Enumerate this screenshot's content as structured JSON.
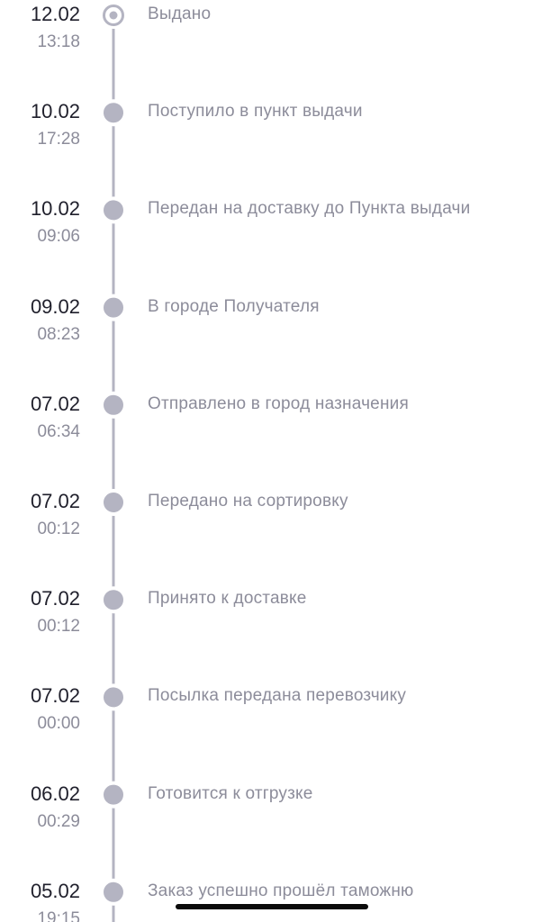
{
  "events": [
    {
      "date": "12.02",
      "time": "13:18",
      "status": "Выдано"
    },
    {
      "date": "10.02",
      "time": "17:28",
      "status": "Поступило в пункт выдачи"
    },
    {
      "date": "10.02",
      "time": "09:06",
      "status": "Передан на доставку до Пункта выдачи"
    },
    {
      "date": "09.02",
      "time": "08:23",
      "status": "В городе Получателя"
    },
    {
      "date": "07.02",
      "time": "06:34",
      "status": "Отправлено в город назначения"
    },
    {
      "date": "07.02",
      "time": "00:12",
      "status": "Передано на сортировку"
    },
    {
      "date": "07.02",
      "time": "00:12",
      "status": "Принято к доставке"
    },
    {
      "date": "07.02",
      "time": "00:00",
      "status": "Посылка передана перевозчику"
    },
    {
      "date": "06.02",
      "time": "00:29",
      "status": "Готовится к отгрузке"
    },
    {
      "date": "05.02",
      "time": "19:15",
      "status": "Заказ успешно прошёл таможню"
    }
  ]
}
